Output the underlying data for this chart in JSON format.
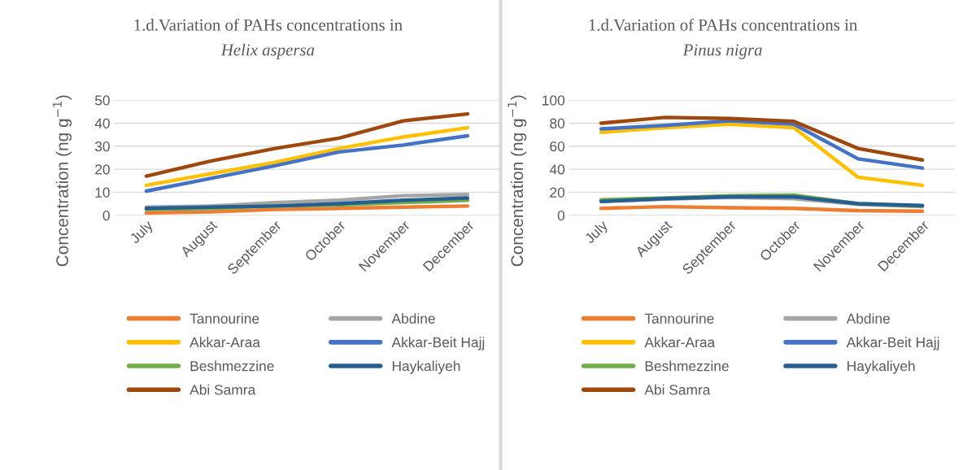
{
  "chart_data": [
    {
      "type": "line",
      "title": "1.d.Variation of PAHs concentrations in",
      "subtitle": "Helix aspersa",
      "ylabel": "Concentration (ng g$^{−1}$)",
      "categories": [
        "July",
        "August",
        "September",
        "October",
        "November",
        "December"
      ],
      "ylim": [
        0,
        50
      ],
      "yticks": [
        0,
        10,
        20,
        30,
        40,
        50
      ],
      "grid": "y",
      "legend": "bottom",
      "series": [
        {
          "name": "Tannourine",
          "color": "#ed7d31",
          "values": [
            1,
            1.5,
            2.5,
            3,
            3.5,
            4
          ]
        },
        {
          "name": "Abdine",
          "color": "#a5a5a5",
          "values": [
            3.5,
            4,
            5.5,
            6.5,
            8.5,
            9
          ]
        },
        {
          "name": "Akkar-Araa",
          "color": "#ffc000",
          "values": [
            13,
            18,
            23,
            29,
            34,
            38
          ]
        },
        {
          "name": "Akkar-Beit Hajj",
          "color": "#4472c4",
          "values": [
            10.5,
            16,
            21.5,
            27.5,
            30.5,
            34.5
          ]
        },
        {
          "name": "Beshmezzine",
          "color": "#70ad47",
          "values": [
            2.5,
            3,
            4,
            4.5,
            5.5,
            6.5
          ]
        },
        {
          "name": "Haykaliyeh",
          "color": "#255e91",
          "values": [
            3,
            3.5,
            4,
            5,
            6.5,
            7.5
          ]
        },
        {
          "name": "Abi Samra",
          "color": "#9e480e",
          "values": [
            17,
            23.5,
            29,
            33.5,
            41,
            44
          ]
        }
      ]
    },
    {
      "type": "line",
      "title": "1.d.Variation of PAHs concentrations in",
      "subtitle": "Pinus nigra",
      "ylabel": "Concentration (ng g$^{−1}$)",
      "categories": [
        "July",
        "August",
        "September",
        "October",
        "November",
        "December"
      ],
      "ylim": [
        0,
        100
      ],
      "yticks": [
        0,
        20,
        40,
        60,
        80,
        100
      ],
      "grid": "y",
      "legend": "bottom",
      "series": [
        {
          "name": "Tannourine",
          "color": "#ed7d31",
          "values": [
            6,
            7.5,
            6.5,
            6,
            4,
            3.5
          ]
        },
        {
          "name": "Abdine",
          "color": "#a5a5a5",
          "values": [
            12,
            14,
            15.5,
            14.5,
            9.5,
            7.5
          ]
        },
        {
          "name": "Akkar-Araa",
          "color": "#ffc000",
          "values": [
            72,
            76,
            79,
            76,
            33,
            26
          ]
        },
        {
          "name": "Akkar-Beit Hajj",
          "color": "#4472c4",
          "values": [
            75,
            78,
            82,
            79,
            49,
            41
          ]
        },
        {
          "name": "Beshmezzine",
          "color": "#70ad47",
          "values": [
            13.5,
            15,
            17,
            17.5,
            10,
            8
          ]
        },
        {
          "name": "Haykaliyeh",
          "color": "#255e91",
          "values": [
            12,
            14.5,
            16,
            16,
            10,
            8.5
          ]
        },
        {
          "name": "Abi Samra",
          "color": "#9e480e",
          "values": [
            80,
            85,
            84,
            81.5,
            58,
            48
          ]
        }
      ]
    }
  ]
}
